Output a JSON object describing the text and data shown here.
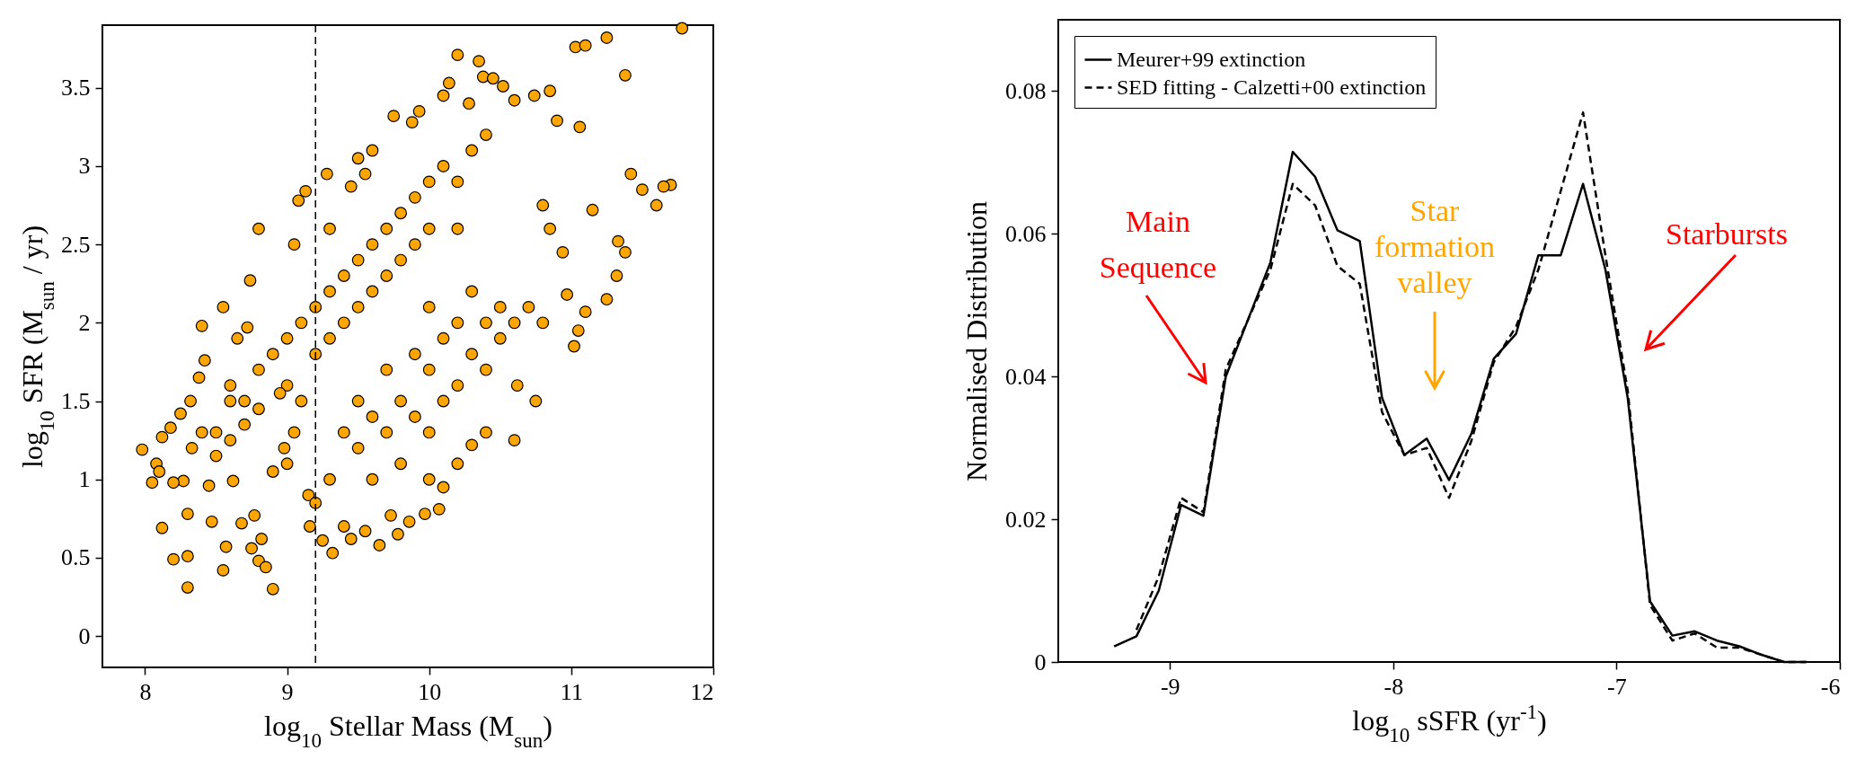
{
  "chart_data": [
    {
      "type": "scatter",
      "xlabel": "log$_{10}$ Stellar Mass (M$_{sun}$)",
      "ylabel": "log$_{10}$ SFR (M$_{sun}$ / yr)",
      "xlim": [
        7.7,
        12
      ],
      "xticks": [
        8,
        9,
        10,
        11,
        12
      ],
      "ylim": [
        -0.2,
        3.9
      ],
      "yticks": [
        0,
        0.5,
        1,
        1.5,
        2,
        2.5,
        3,
        3.5
      ],
      "marker": "circle",
      "ref_lines": [
        {
          "axis": "x",
          "value": 9.2,
          "line_style": "dashed",
          "color": "#000000"
        }
      ],
      "series": [
        {
          "color": "#ffa500",
          "x": [
            7.98,
            8.05,
            8.08,
            8.12,
            8.12,
            8.2,
            8.18,
            8.25,
            8.27,
            8.3,
            8.3,
            8.3,
            8.32,
            8.33,
            8.38,
            8.4,
            8.42,
            8.45,
            8.47,
            8.5,
            8.55,
            8.55,
            8.57,
            8.6,
            8.62,
            8.65,
            8.68,
            8.72,
            8.74,
            8.75,
            8.77,
            8.8,
            8.8,
            8.82,
            8.85,
            8.9,
            8.9,
            8.98,
            9.05,
            9.08,
            9.13,
            9.15,
            9.16,
            9.28,
            9.25,
            9.32,
            9.3,
            9.45,
            9.5,
            9.55,
            9.65,
            9.6,
            9.75,
            9.78,
            9.88,
            9.93,
            10.1,
            10.2,
            10.14,
            10.28,
            10.35,
            10.38,
            10.45,
            10.52,
            10.6,
            10.74,
            10.85,
            10.9,
            11.03,
            11.1,
            11.06,
            11.25,
            11.38,
            11.78,
            11.7,
            11.65,
            11.6,
            11.42,
            11.5,
            11.33,
            11.38,
            11.32,
            11.25,
            11.15,
            11.05,
            11.1,
            11.02,
            10.97,
            10.94,
            10.8,
            10.85,
            10.6,
            10.75,
            10.62,
            10.4,
            10.3,
            10.2,
            10.1,
            10.07,
            10.0,
            9.97,
            9.86,
            9.73,
            9.55,
            9.45,
            9.4,
            8.6,
            8.7,
            8.8,
            8.9,
            9.0,
            9.0,
            9.1,
            9.1,
            9.2,
            9.2,
            9.3,
            9.3,
            9.4,
            9.4,
            9.5,
            9.5,
            9.6,
            9.6,
            9.7,
            9.7,
            9.8,
            9.8,
            9.9,
            9.9,
            10.0,
            10.0,
            10.1,
            10.2,
            10.3,
            10.4,
            10.2,
            9.4,
            9.5,
            9.5,
            9.6,
            9.6,
            9.7,
            9.7,
            9.8,
            9.8,
            9.9,
            9.9,
            10.0,
            10.0,
            10.0,
            10.1,
            10.1,
            10.2,
            10.2,
            10.3,
            10.3,
            10.4,
            10.4,
            10.5,
            10.5,
            10.6,
            10.7,
            10.8,
            9.3,
            9.2,
            8.4,
            8.5,
            8.6,
            8.7,
            8.8,
            8.95,
            9.05,
            9.0,
            8.1,
            8.2
          ],
          "values": [
            1.19,
            0.98,
            1.1,
            1.27,
            0.69,
            0.49,
            1.33,
            1.42,
            0.99,
            0.31,
            0.51,
            0.78,
            1.5,
            1.2,
            1.65,
            1.98,
            1.76,
            0.96,
            0.73,
            1.3,
            2.1,
            0.42,
            0.57,
            1.5,
            0.99,
            1.9,
            0.72,
            1.97,
            2.27,
            0.56,
            0.77,
            0.48,
            2.6,
            0.62,
            0.44,
            0.3,
            1.05,
            1.2,
            2.5,
            2.78,
            2.84,
            0.9,
            0.7,
            2.95,
            0.61,
            0.53,
            2.6,
            2.87,
            3.05,
            2.95,
            0.58,
            3.1,
            3.32,
            0.65,
            3.28,
            3.35,
            3.45,
            3.71,
            3.53,
            3.4,
            3.67,
            3.57,
            3.56,
            3.51,
            3.42,
            3.45,
            3.48,
            3.29,
            3.76,
            3.77,
            3.25,
            3.82,
            3.58,
            3.88,
            2.88,
            2.87,
            2.75,
            2.95,
            2.85,
            2.52,
            2.45,
            2.3,
            2.15,
            2.72,
            1.95,
            2.07,
            1.85,
            2.18,
            2.45,
            2.75,
            2.6,
            1.25,
            1.5,
            1.6,
            1.3,
            1.22,
            1.1,
            0.95,
            0.81,
            1.0,
            0.78,
            0.73,
            0.77,
            0.67,
            0.62,
            0.7,
            1.6,
            1.5,
            1.7,
            1.8,
            1.9,
            1.6,
            2.0,
            1.5,
            2.1,
            1.8,
            2.2,
            1.9,
            2.3,
            2.0,
            2.4,
            2.1,
            2.5,
            2.2,
            2.6,
            2.3,
            2.7,
            2.4,
            2.8,
            2.5,
            2.9,
            2.6,
            3.0,
            2.9,
            3.1,
            3.2,
            2.6,
            1.3,
            1.2,
            1.5,
            1.0,
            1.4,
            1.3,
            1.7,
            1.1,
            1.5,
            1.4,
            1.8,
            1.3,
            1.7,
            2.1,
            1.5,
            1.9,
            1.6,
            2.0,
            1.8,
            2.2,
            1.7,
            2.0,
            1.9,
            2.1,
            2.0,
            2.1,
            2.0,
            1.0,
            0.85,
            1.3,
            1.15,
            1.25,
            1.35,
            1.45,
            1.55,
            1.3,
            1.1,
            1.05,
            0.98
          ]
        }
      ]
    },
    {
      "type": "line",
      "xlabel": "log$_{10}$ sSFR (yr$^{-1}$)",
      "ylabel": "Normalised Distribution",
      "xlim": [
        -9.5,
        -6
      ],
      "xticks": [
        -9,
        -8,
        -7,
        -6
      ],
      "ylim": [
        0,
        0.09
      ],
      "yticks": [
        0,
        0.02,
        0.04,
        0.06,
        0.08
      ],
      "legend": "top left",
      "x": [
        -9.25,
        -9.15,
        -9.05,
        -8.95,
        -8.85,
        -8.75,
        -8.65,
        -8.55,
        -8.45,
        -8.35,
        -8.25,
        -8.15,
        -8.05,
        -7.95,
        -7.85,
        -7.75,
        -7.65,
        -7.55,
        -7.45,
        -7.35,
        -7.25,
        -7.15,
        -7.05,
        -6.95,
        -6.85,
        -6.75,
        -6.65,
        -6.55,
        -6.45,
        -6.35,
        -6.25,
        -6.15
      ],
      "series": [
        {
          "name": "Meurer+99 extinction",
          "color": "#000000",
          "line_style": "solid",
          "values": [
            0.0022,
            0.0036,
            0.01,
            0.022,
            0.0205,
            0.04,
            0.048,
            0.056,
            0.0715,
            0.068,
            0.0605,
            0.059,
            0.037,
            0.029,
            0.0313,
            0.0255,
            0.032,
            0.0425,
            0.046,
            0.057,
            0.057,
            0.067,
            0.055,
            0.037,
            0.0085,
            0.0037,
            0.0043,
            0.003,
            0.0022,
            0.001,
            0,
            0
          ]
        },
        {
          "name": "SED fitting - Calzetti+00 extinction",
          "color": "#000000",
          "line_style": "dashed",
          "values": [
            null,
            0.0045,
            0.012,
            0.023,
            0.021,
            0.041,
            0.048,
            0.055,
            0.067,
            0.064,
            0.0555,
            0.053,
            0.035,
            0.029,
            0.03,
            0.023,
            0.031,
            0.042,
            0.047,
            0.055,
            0.066,
            0.077,
            0.057,
            0.038,
            0.008,
            0.003,
            0.004,
            0.002,
            0.002,
            0.001,
            0,
            0
          ]
        }
      ],
      "annotations": [
        "Main Sequence",
        "Star formation valley",
        "Starbursts"
      ]
    }
  ]
}
